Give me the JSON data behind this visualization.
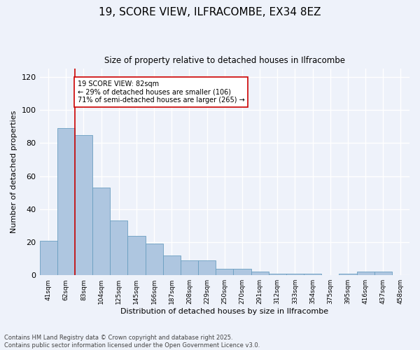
{
  "title1": "19, SCORE VIEW, ILFRACOMBE, EX34 8EZ",
  "title2": "Size of property relative to detached houses in Ilfracombe",
  "xlabel": "Distribution of detached houses by size in Ilfracombe",
  "ylabel": "Number of detached properties",
  "categories": [
    "41sqm",
    "62sqm",
    "83sqm",
    "104sqm",
    "125sqm",
    "145sqm",
    "166sqm",
    "187sqm",
    "208sqm",
    "229sqm",
    "250sqm",
    "270sqm",
    "291sqm",
    "312sqm",
    "333sqm",
    "354sqm",
    "375sqm",
    "395sqm",
    "416sqm",
    "437sqm",
    "458sqm"
  ],
  "values": [
    21,
    89,
    85,
    53,
    33,
    24,
    19,
    12,
    9,
    9,
    4,
    4,
    2,
    1,
    1,
    1,
    0,
    1,
    2,
    2,
    0
  ],
  "bar_color": "#aec6e0",
  "bar_edge_color": "#6a9fc0",
  "marker_line_color": "#cc0000",
  "annotation_text": "19 SCORE VIEW: 82sqm\n← 29% of detached houses are smaller (106)\n71% of semi-detached houses are larger (265) →",
  "annotation_box_color": "#ffffff",
  "annotation_box_edge": "#cc0000",
  "ylim": [
    0,
    125
  ],
  "yticks": [
    0,
    20,
    40,
    60,
    80,
    100,
    120
  ],
  "background_color": "#eef2fa",
  "grid_color": "#ffffff",
  "footer_text": "Contains HM Land Registry data © Crown copyright and database right 2025.\nContains public sector information licensed under the Open Government Licence v3.0."
}
